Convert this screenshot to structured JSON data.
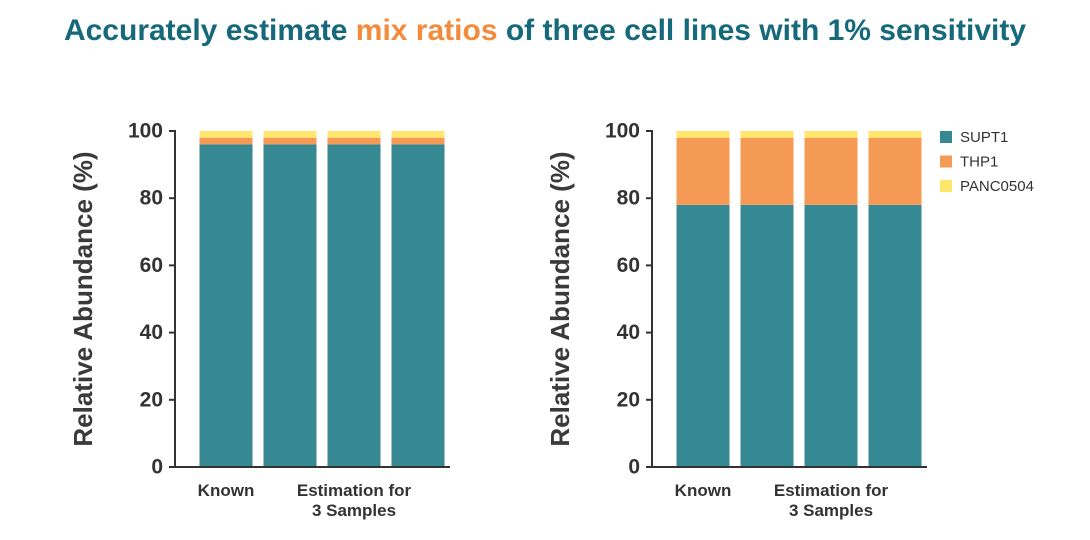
{
  "title": [
    "Accurately estimate",
    "mix ratios",
    "of three cell lines with 1% sensitivity"
  ],
  "chart_data": [
    {
      "type": "stacked_bar",
      "y_label": "Relative Abundance (%)",
      "categories": [
        "Known",
        null,
        "Estimation for\n3 Samples",
        null
      ],
      "series": [
        {
          "name": "SUPT1",
          "color": "#368893",
          "values": [
            96,
            96,
            96,
            96
          ]
        },
        {
          "name": "THP1",
          "color": "#f59a55",
          "values": [
            2,
            2,
            2,
            2
          ]
        },
        {
          "name": "PANC0504",
          "color": "#fde66a",
          "values": [
            2,
            2,
            2,
            2
          ]
        }
      ],
      "ylim": [
        0,
        100
      ],
      "yticks": [
        0,
        20,
        40,
        60,
        80,
        100
      ]
    },
    {
      "type": "stacked_bar",
      "y_label": "Relative Abundance (%)",
      "categories": [
        "Known",
        null,
        "Estimation for\n3 Samples",
        null
      ],
      "series": [
        {
          "name": "SUPT1",
          "color": "#368893",
          "values": [
            78,
            78,
            78,
            78
          ]
        },
        {
          "name": "THP1",
          "color": "#f59a55",
          "values": [
            20,
            20,
            20,
            20
          ]
        },
        {
          "name": "PANC0504",
          "color": "#fde66a",
          "values": [
            2,
            2,
            2,
            2
          ]
        }
      ],
      "ylim": [
        0,
        100
      ],
      "yticks": [
        0,
        20,
        40,
        60,
        80,
        100
      ],
      "legend": "right"
    }
  ]
}
